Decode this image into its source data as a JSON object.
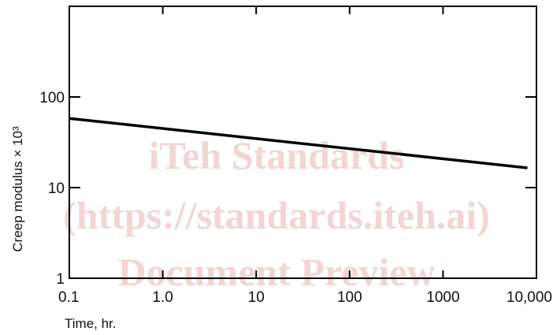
{
  "chart_data": {
    "type": "line",
    "xscale": "log",
    "yscale": "log",
    "xlim": [
      0.1,
      10000
    ],
    "ylim": [
      1,
      1000
    ],
    "x_ticks": [
      {
        "value": 0.1,
        "label": "0.1"
      },
      {
        "value": 1,
        "label": "1.0"
      },
      {
        "value": 10,
        "label": "10"
      },
      {
        "value": 100,
        "label": "100"
      },
      {
        "value": 1000,
        "label": "1000"
      },
      {
        "value": 10000,
        "label": "10,000"
      }
    ],
    "y_ticks": [
      {
        "value": 1,
        "label": "1"
      },
      {
        "value": 10,
        "label": "10"
      },
      {
        "value": 100,
        "label": "100"
      }
    ],
    "xlabel": "Time, hr.",
    "ylabel": "Creep modulus × 10³",
    "grid": false,
    "series": [
      {
        "x": [
          0.1,
          8000
        ],
        "y": [
          58,
          16.5
        ]
      }
    ]
  },
  "watermark": {
    "lines": [
      "iTeh Standards",
      "(https://standards.iteh.ai)",
      "Document Preview"
    ]
  }
}
